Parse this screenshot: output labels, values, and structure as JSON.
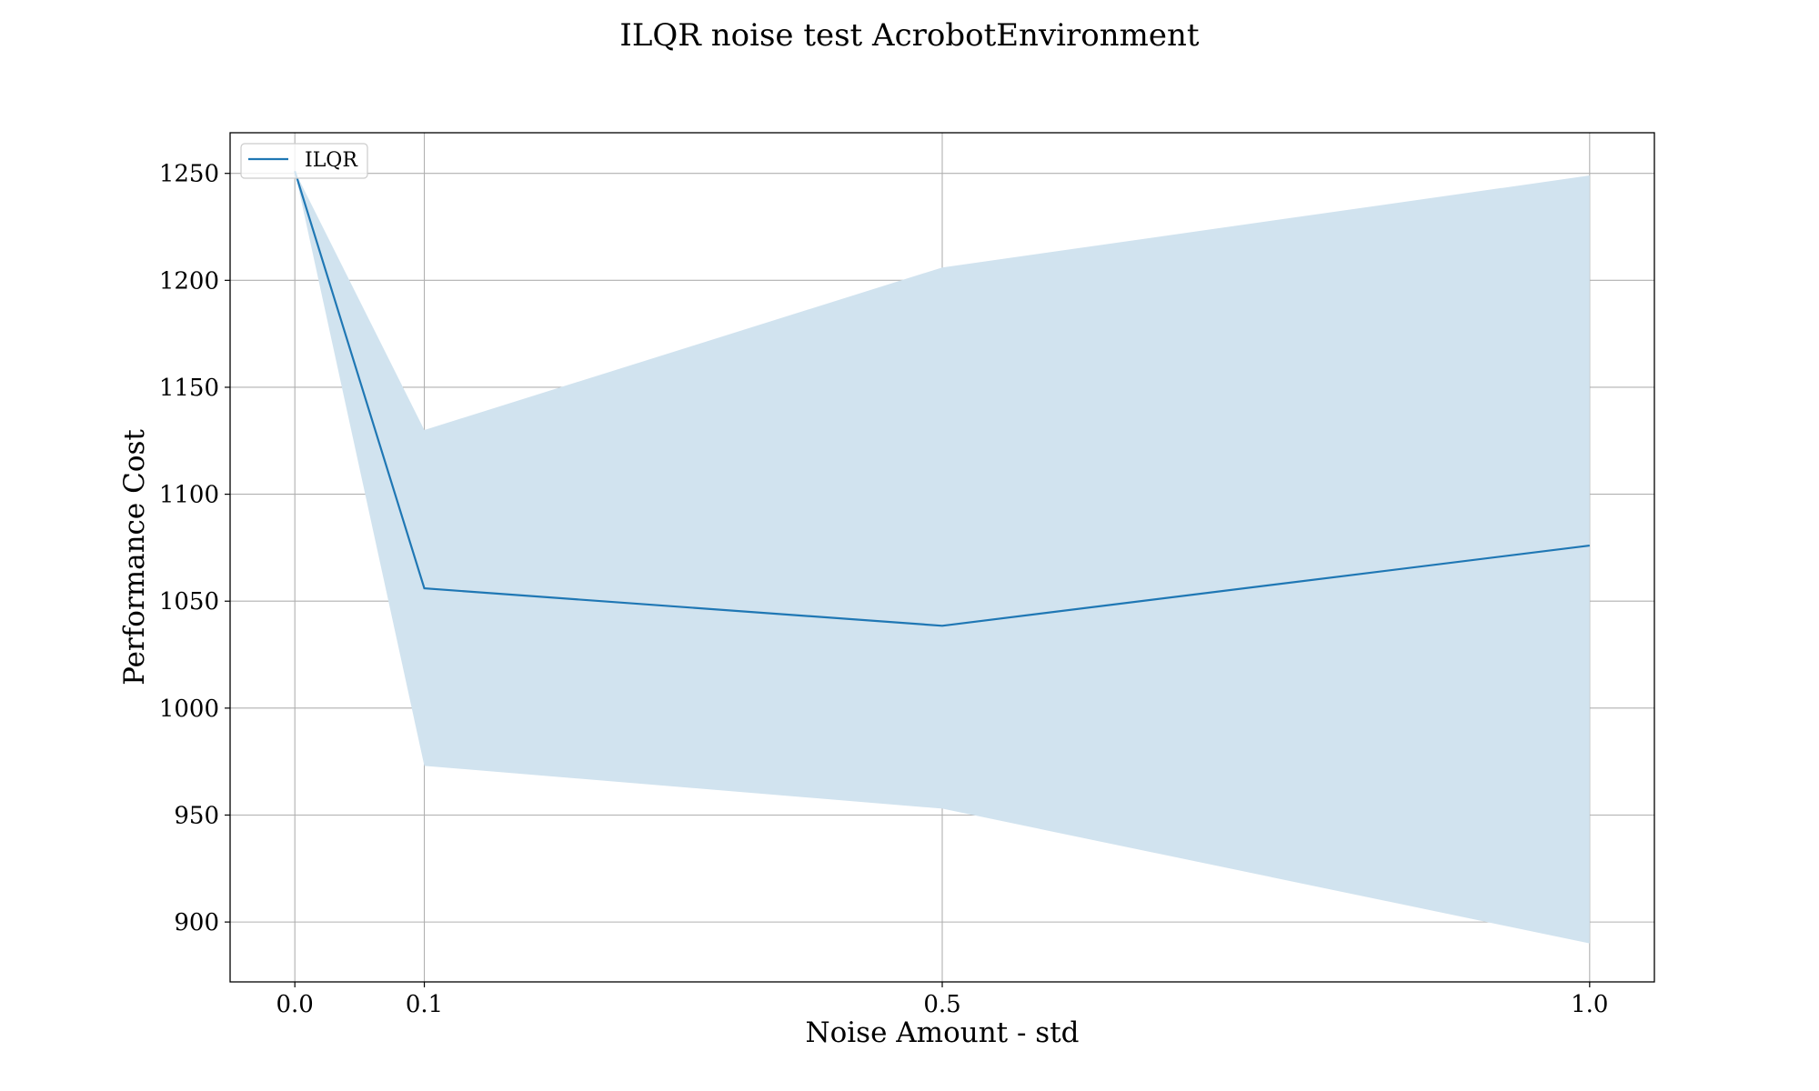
{
  "chart_data": {
    "type": "line",
    "title": "ILQR noise test AcrobotEnvironment",
    "xlabel": "Noise Amount - std",
    "ylabel": "Performance Cost",
    "x": [
      0.0,
      0.1,
      0.5,
      1.0
    ],
    "x_tick_labels": [
      "0.0",
      "0.1",
      "0.5",
      "1.0"
    ],
    "y_ticks": [
      900,
      950,
      1000,
      1050,
      1100,
      1150,
      1200,
      1250
    ],
    "y_tick_labels": [
      "900",
      "950",
      "1000",
      "1050",
      "1100",
      "1150",
      "1200",
      "1250"
    ],
    "xlim": [
      -0.05,
      1.05
    ],
    "ylim": [
      872,
      1269
    ],
    "grid": true,
    "legend_position": "upper-left",
    "series": [
      {
        "name": "ILQR",
        "color": "#1f77b4",
        "band_color": "#d1e3ef",
        "values": [
          1251,
          1056,
          1038.5,
          1076
        ],
        "band_upper": [
          1251,
          1130,
          1206,
          1249
        ],
        "band_lower": [
          1251,
          973,
          953,
          890
        ]
      }
    ]
  }
}
